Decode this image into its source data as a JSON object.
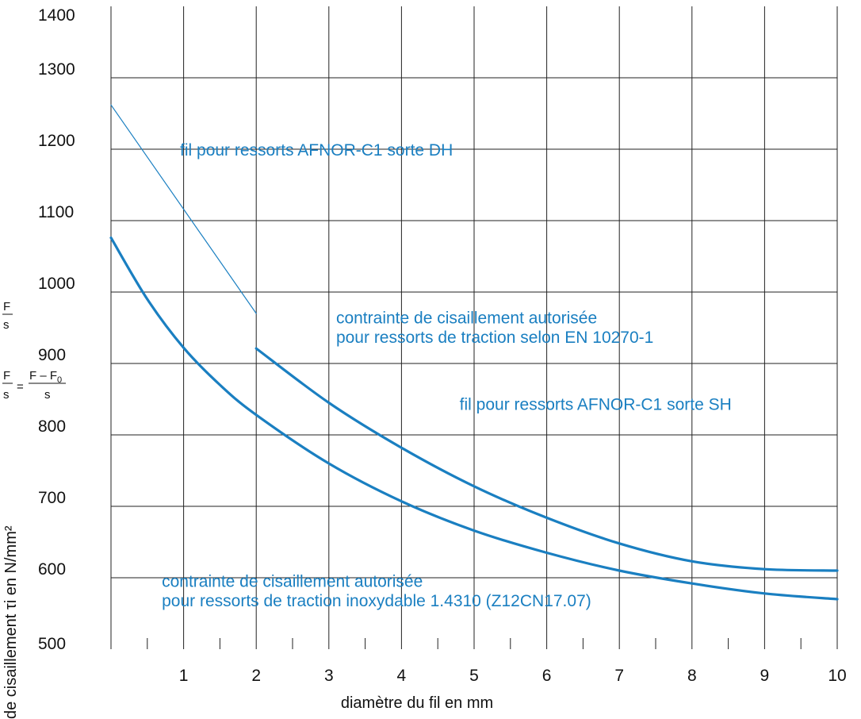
{
  "chart_data": {
    "type": "line",
    "xlabel": "diamètre du fil en mm",
    "ylabel": "de cisaillement τi en N/mm²",
    "xlim": [
      0,
      10
    ],
    "ylim": [
      500,
      1400
    ],
    "x_ticks": [
      1,
      2,
      3,
      4,
      5,
      6,
      7,
      8,
      9,
      10
    ],
    "y_ticks": [
      500,
      600,
      700,
      800,
      900,
      1000,
      1100,
      1200,
      1300,
      1400
    ],
    "grid": true,
    "line_color": "#1a7fc1",
    "series": [
      {
        "name": "fil pour ressorts AFNOR-C1 sorte DH",
        "x": [
          0,
          2
        ],
        "y": [
          1262,
          970
        ],
        "line_width": "thin"
      },
      {
        "name": "fil pour ressorts AFNOR-C1 sorte SH",
        "x": [
          2,
          3,
          4,
          5,
          6,
          7,
          8,
          9,
          10
        ],
        "y": [
          921,
          845,
          782,
          728,
          684,
          648,
          623,
          612,
          610
        ],
        "line_width": "thick"
      },
      {
        "name": "contrainte de cisaillement autorisée pour ressorts de traction inoxydable 1.4310 (Z12CN17.07)",
        "x": [
          0,
          0.5,
          1,
          1.5,
          2,
          3,
          4,
          5,
          6,
          7,
          8,
          9,
          10
        ],
        "y": [
          1076,
          990,
          922,
          870,
          828,
          760,
          707,
          666,
          635,
          610,
          592,
          578,
          570
        ],
        "line_width": "thick"
      }
    ],
    "annotations": [
      {
        "text": "fil pour ressorts AFNOR-C1 sorte DH",
        "x": 0.95,
        "y": 1191
      },
      {
        "text": "contrainte de cisaillement autorisée",
        "x": 3.1,
        "y": 956
      },
      {
        "text": "pour ressorts de traction selon EN 10270-1",
        "x": 3.1,
        "y": 929
      },
      {
        "text": "fil pour ressorts AFNOR-C1 sorte SH",
        "x": 4.8,
        "y": 835
      },
      {
        "text": "contrainte de cisaillement autorisée",
        "x": 0.7,
        "y": 587
      },
      {
        "text": "pour ressorts de traction inoxydable 1.4310 (Z12CN17.07)",
        "x": 0.7,
        "y": 560
      }
    ],
    "formula": {
      "f1_num": "F",
      "f1_den": "s",
      "f2_lhs_num": "F",
      "f2_lhs_den": "s",
      "equals": "=",
      "f2_rhs_num": "F – F",
      "f2_rhs_sub": "0",
      "f2_rhs_den": "s"
    }
  }
}
